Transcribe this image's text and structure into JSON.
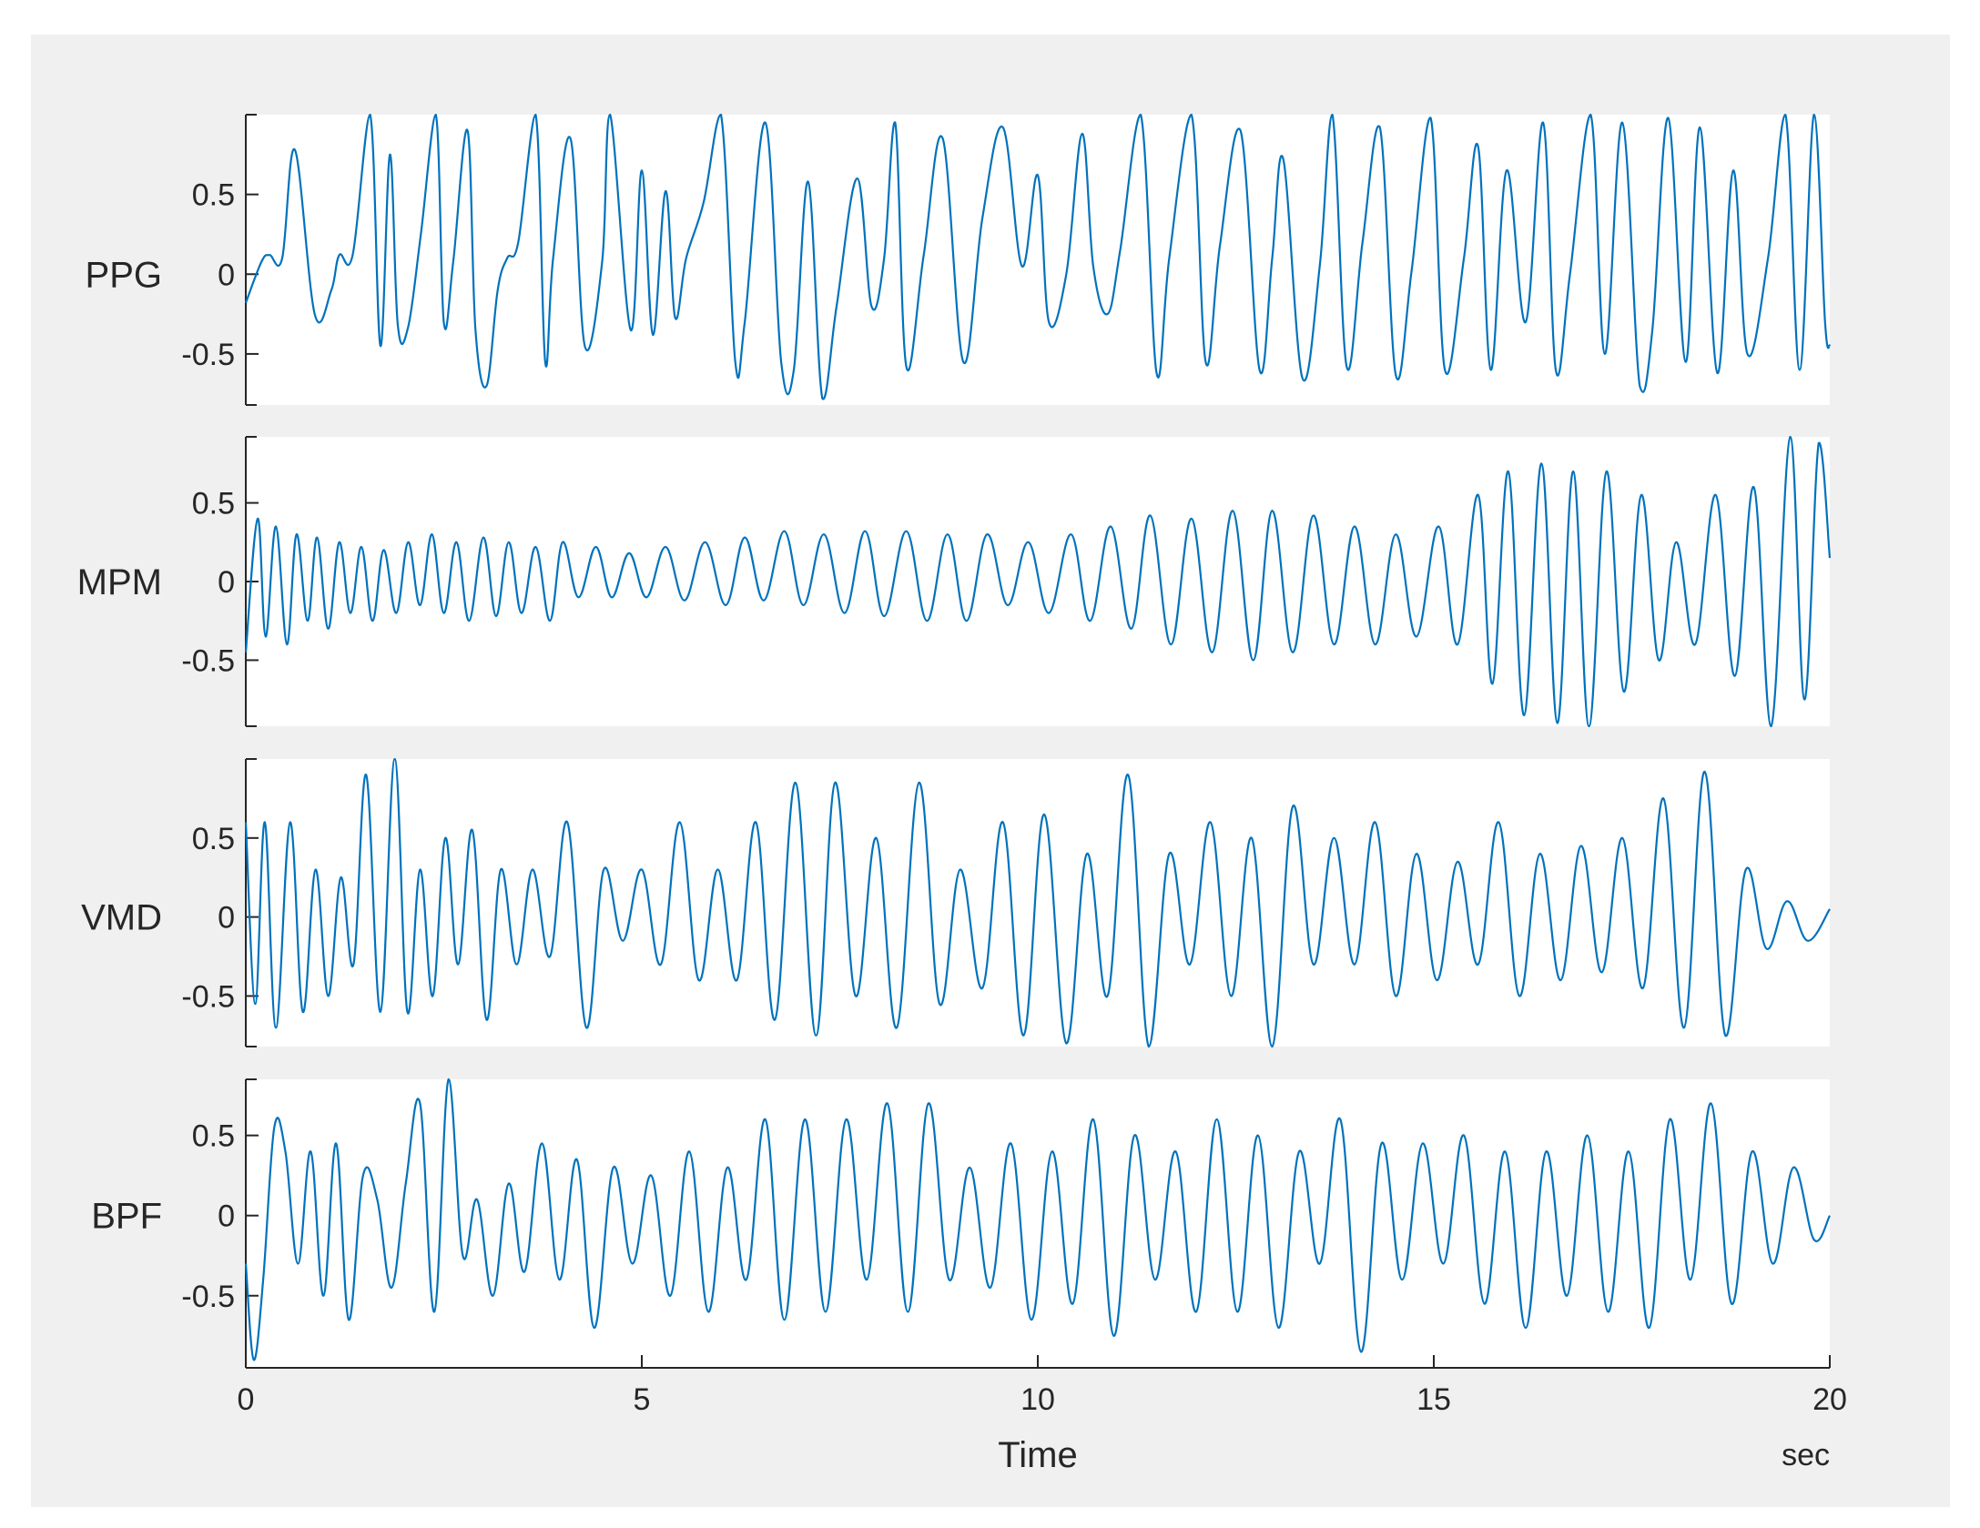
{
  "colors": {
    "figure_background": "#f0f0f0",
    "axes_background": "#ffffff",
    "axis": "#262626",
    "line": "#0072BD"
  },
  "chart_data": {
    "type": "line",
    "xlabel": "Time",
    "xunit": "sec",
    "xlim": [
      0,
      20
    ],
    "xticks": [
      0,
      5,
      10,
      15,
      20
    ],
    "xtick_labels": [
      "0",
      "5",
      "10",
      "15",
      "20"
    ],
    "subplots": [
      {
        "ylabel": "PPG",
        "ylim": [
          -0.82,
          1.0
        ],
        "yticks": [
          -0.5,
          0,
          0.5
        ],
        "ytick_labels": [
          "-0.5",
          "0",
          "0.5"
        ],
        "series": [
          {
            "x": [
              0,
              0.2,
              0.3,
              0.46,
              0.62,
              0.87,
              1.08,
              1.18,
              1.35,
              1.57,
              1.7,
              1.82,
              1.92,
              2.05,
              2.21,
              2.4,
              2.5,
              2.62,
              2.8,
              2.9,
              3.04,
              3.18,
              3.3,
              3.44,
              3.66,
              3.78,
              3.88,
              4.1,
              4.28,
              4.5,
              4.6,
              4.86,
              5.0,
              5.14,
              5.3,
              5.42,
              5.56,
              5.78,
              6.0,
              6.18,
              6.3,
              6.56,
              6.76,
              6.92,
              7.1,
              7.28,
              7.46,
              7.72,
              7.9,
              8.06,
              8.2,
              8.34,
              8.56,
              8.8,
              9.06,
              9.3,
              9.56,
              9.8,
              10.0,
              10.14,
              10.36,
              10.56,
              10.7,
              10.88,
              11.04,
              11.3,
              11.5,
              11.66,
              11.94,
              12.12,
              12.3,
              12.56,
              12.8,
              12.96,
              13.1,
              13.34,
              13.56,
              13.72,
              13.9,
              14.1,
              14.32,
              14.52,
              14.72,
              14.96,
              15.14,
              15.38,
              15.56,
              15.72,
              15.92,
              16.16,
              16.38,
              16.54,
              16.72,
              16.98,
              17.16,
              17.38,
              17.6,
              17.76,
              17.96,
              18.18,
              18.36,
              18.58,
              18.78,
              18.96,
              19.22,
              19.44,
              19.62,
              19.8,
              19.94,
              20.0
            ],
            "y": [
              -0.18,
              0.08,
              0.12,
              0.1,
              0.78,
              -0.25,
              -0.1,
              0.12,
              0.12,
              1.0,
              -0.45,
              0.75,
              -0.32,
              -0.33,
              0.25,
              1.0,
              -0.3,
              0.08,
              0.9,
              -0.35,
              -0.7,
              -0.1,
              0.1,
              0.2,
              1.0,
              -0.55,
              0.1,
              0.85,
              -0.45,
              0.08,
              1.0,
              -0.35,
              0.65,
              -0.38,
              0.52,
              -0.27,
              0.1,
              0.45,
              1.0,
              -0.55,
              -0.3,
              0.95,
              -0.55,
              -0.6,
              0.58,
              -0.78,
              -0.2,
              0.6,
              -0.2,
              0.1,
              0.95,
              -0.58,
              0.12,
              0.85,
              -0.55,
              0.35,
              0.92,
              0.05,
              0.62,
              -0.3,
              0.0,
              0.88,
              0.05,
              -0.25,
              0.15,
              1.0,
              -0.62,
              0.1,
              1.0,
              -0.55,
              0.18,
              0.9,
              -0.6,
              0.1,
              0.72,
              -0.65,
              0.05,
              1.0,
              -0.58,
              0.2,
              0.92,
              -0.63,
              0.02,
              0.98,
              -0.6,
              0.1,
              0.8,
              -0.6,
              0.65,
              -0.3,
              0.95,
              -0.6,
              0.0,
              1.0,
              -0.5,
              0.95,
              -0.7,
              -0.35,
              0.98,
              -0.55,
              0.92,
              -0.62,
              0.65,
              -0.5,
              0.1,
              1.0,
              -0.6,
              1.0,
              -0.3,
              -0.45
            ]
          }
        ]
      },
      {
        "ylabel": "MPM",
        "ylim": [
          -0.92,
          0.92
        ],
        "yticks": [
          -0.5,
          0,
          0.5
        ],
        "ytick_labels": [
          "-0.5",
          "0",
          "0.5"
        ],
        "series": [
          {
            "x": [
              0,
              0.15,
              0.25,
              0.38,
              0.52,
              0.64,
              0.78,
              0.9,
              1.04,
              1.18,
              1.32,
              1.46,
              1.6,
              1.74,
              1.9,
              2.05,
              2.2,
              2.35,
              2.5,
              2.66,
              2.82,
              3.0,
              3.16,
              3.32,
              3.48,
              3.66,
              3.84,
              4.0,
              4.2,
              4.42,
              4.62,
              4.84,
              5.06,
              5.3,
              5.54,
              5.8,
              6.06,
              6.3,
              6.54,
              6.8,
              7.04,
              7.3,
              7.56,
              7.82,
              8.06,
              8.34,
              8.6,
              8.86,
              9.1,
              9.36,
              9.62,
              9.88,
              10.14,
              10.42,
              10.66,
              10.92,
              11.18,
              11.42,
              11.68,
              11.94,
              12.2,
              12.46,
              12.72,
              12.96,
              13.22,
              13.48,
              13.74,
              14.0,
              14.26,
              14.52,
              14.78,
              15.06,
              15.3,
              15.56,
              15.74,
              15.94,
              16.14,
              16.36,
              16.56,
              16.76,
              16.96,
              17.18,
              17.4,
              17.62,
              17.84,
              18.06,
              18.3,
              18.56,
              18.8,
              19.04,
              19.26,
              19.5,
              19.68,
              19.86,
              20.0
            ],
            "y": [
              -0.45,
              0.4,
              -0.35,
              0.35,
              -0.4,
              0.3,
              -0.25,
              0.28,
              -0.3,
              0.25,
              -0.2,
              0.22,
              -0.25,
              0.2,
              -0.2,
              0.25,
              -0.15,
              0.3,
              -0.2,
              0.25,
              -0.25,
              0.28,
              -0.22,
              0.25,
              -0.2,
              0.22,
              -0.25,
              0.25,
              -0.1,
              0.22,
              -0.1,
              0.18,
              -0.1,
              0.22,
              -0.12,
              0.25,
              -0.15,
              0.28,
              -0.12,
              0.32,
              -0.15,
              0.3,
              -0.2,
              0.32,
              -0.22,
              0.32,
              -0.25,
              0.3,
              -0.25,
              0.3,
              -0.15,
              0.25,
              -0.2,
              0.3,
              -0.25,
              0.35,
              -0.3,
              0.42,
              -0.4,
              0.4,
              -0.45,
              0.45,
              -0.5,
              0.45,
              -0.45,
              0.42,
              -0.4,
              0.35,
              -0.4,
              0.3,
              -0.35,
              0.35,
              -0.4,
              0.55,
              -0.65,
              0.7,
              -0.85,
              0.75,
              -0.9,
              0.7,
              -0.92,
              0.7,
              -0.7,
              0.55,
              -0.5,
              0.25,
              -0.4,
              0.55,
              -0.6,
              0.6,
              -0.92,
              0.92,
              -0.75,
              0.88,
              0.15
            ]
          }
        ]
      },
      {
        "ylabel": "VMD",
        "ylim": [
          -0.82,
          1.0
        ],
        "yticks": [
          -0.5,
          0,
          0.5
        ],
        "ytick_labels": [
          "-0.5",
          "0",
          "0.5"
        ],
        "series": [
          {
            "x": [
              0,
              0.12,
              0.24,
              0.38,
              0.56,
              0.72,
              0.88,
              1.04,
              1.2,
              1.36,
              1.52,
              1.7,
              1.88,
              2.04,
              2.2,
              2.36,
              2.52,
              2.68,
              2.86,
              3.04,
              3.22,
              3.42,
              3.62,
              3.84,
              4.06,
              4.3,
              4.52,
              4.76,
              5.0,
              5.24,
              5.48,
              5.72,
              5.96,
              6.2,
              6.44,
              6.68,
              6.94,
              7.2,
              7.44,
              7.7,
              7.96,
              8.22,
              8.5,
              8.76,
              9.02,
              9.3,
              9.56,
              9.82,
              10.08,
              10.36,
              10.62,
              10.88,
              11.14,
              11.4,
              11.66,
              11.92,
              12.18,
              12.44,
              12.7,
              12.96,
              13.22,
              13.48,
              13.74,
              14.0,
              14.26,
              14.52,
              14.78,
              15.04,
              15.3,
              15.56,
              15.82,
              16.08,
              16.34,
              16.6,
              16.86,
              17.12,
              17.38,
              17.64,
              17.9,
              18.16,
              18.42,
              18.68,
              18.94,
              19.2,
              19.46,
              19.72,
              20.0
            ],
            "y": [
              0.6,
              -0.55,
              0.6,
              -0.7,
              0.6,
              -0.6,
              0.3,
              -0.5,
              0.25,
              -0.3,
              0.9,
              -0.6,
              1.0,
              -0.6,
              0.3,
              -0.5,
              0.5,
              -0.3,
              0.55,
              -0.65,
              0.3,
              -0.3,
              0.3,
              -0.25,
              0.6,
              -0.7,
              0.3,
              -0.15,
              0.3,
              -0.3,
              0.6,
              -0.4,
              0.3,
              -0.4,
              0.6,
              -0.65,
              0.85,
              -0.75,
              0.85,
              -0.5,
              0.5,
              -0.7,
              0.85,
              -0.55,
              0.3,
              -0.45,
              0.6,
              -0.75,
              0.65,
              -0.8,
              0.4,
              -0.5,
              0.9,
              -0.82,
              0.4,
              -0.3,
              0.6,
              -0.5,
              0.5,
              -0.82,
              0.7,
              -0.3,
              0.5,
              -0.3,
              0.6,
              -0.5,
              0.4,
              -0.4,
              0.35,
              -0.3,
              0.6,
              -0.5,
              0.4,
              -0.4,
              0.45,
              -0.35,
              0.5,
              -0.45,
              0.75,
              -0.7,
              0.92,
              -0.75,
              0.3,
              -0.2,
              0.1,
              -0.15,
              0.05
            ]
          }
        ]
      },
      {
        "ylabel": "BPF",
        "ylim": [
          -0.95,
          0.85
        ],
        "yticks": [
          -0.5,
          0,
          0.5
        ],
        "ytick_labels": [
          "-0.5",
          "0",
          "0.5"
        ],
        "series": [
          {
            "x": [
              0,
              0.1,
              0.22,
              0.36,
              0.5,
              0.66,
              0.82,
              0.98,
              1.14,
              1.3,
              1.48,
              1.66,
              1.84,
              2.02,
              2.2,
              2.38,
              2.56,
              2.74,
              2.92,
              3.12,
              3.32,
              3.52,
              3.74,
              3.96,
              4.18,
              4.4,
              4.64,
              4.88,
              5.12,
              5.36,
              5.6,
              5.84,
              6.08,
              6.32,
              6.56,
              6.8,
              7.06,
              7.32,
              7.58,
              7.84,
              8.1,
              8.36,
              8.62,
              8.88,
              9.14,
              9.4,
              9.66,
              9.92,
              10.18,
              10.44,
              10.7,
              10.96,
              11.22,
              11.48,
              11.74,
              12.0,
              12.26,
              12.52,
              12.78,
              13.04,
              13.3,
              13.56,
              13.82,
              14.08,
              14.34,
              14.6,
              14.86,
              15.12,
              15.38,
              15.64,
              15.9,
              16.16,
              16.42,
              16.68,
              16.94,
              17.2,
              17.46,
              17.72,
              17.98,
              18.24,
              18.5,
              18.76,
              19.02,
              19.28,
              19.54,
              19.8,
              20.0
            ],
            "y": [
              -0.3,
              -0.9,
              -0.4,
              0.55,
              0.4,
              -0.3,
              0.4,
              -0.5,
              0.45,
              -0.65,
              0.25,
              0.1,
              -0.45,
              0.2,
              0.7,
              -0.6,
              0.85,
              -0.25,
              0.1,
              -0.5,
              0.2,
              -0.35,
              0.45,
              -0.4,
              0.35,
              -0.7,
              0.3,
              -0.3,
              0.25,
              -0.5,
              0.4,
              -0.6,
              0.3,
              -0.4,
              0.6,
              -0.65,
              0.6,
              -0.6,
              0.6,
              -0.4,
              0.7,
              -0.6,
              0.7,
              -0.4,
              0.3,
              -0.45,
              0.45,
              -0.65,
              0.4,
              -0.55,
              0.6,
              -0.75,
              0.5,
              -0.4,
              0.4,
              -0.6,
              0.6,
              -0.6,
              0.5,
              -0.7,
              0.4,
              -0.3,
              0.6,
              -0.85,
              0.45,
              -0.4,
              0.45,
              -0.3,
              0.5,
              -0.55,
              0.4,
              -0.7,
              0.4,
              -0.5,
              0.5,
              -0.6,
              0.4,
              -0.7,
              0.6,
              -0.4,
              0.7,
              -0.55,
              0.4,
              -0.3,
              0.3,
              -0.15,
              0.0
            ]
          }
        ]
      }
    ]
  }
}
